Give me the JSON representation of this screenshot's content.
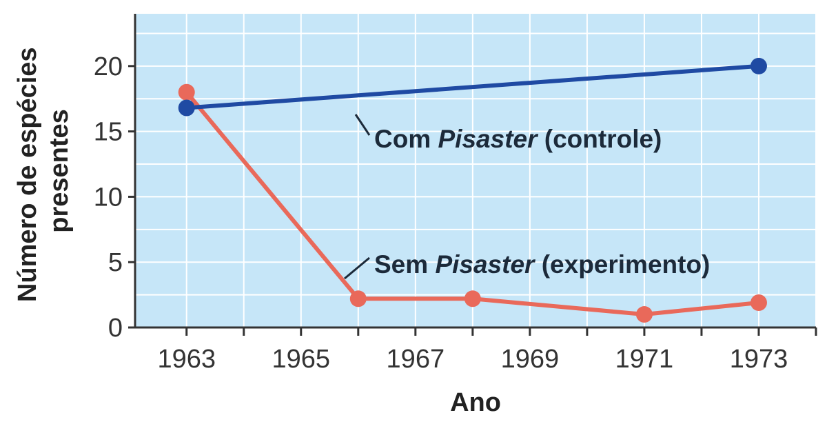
{
  "chart_data": {
    "type": "line",
    "xlabel": "Ano",
    "ylabel_lines": [
      "Número de espécies",
      "presentes"
    ],
    "x_ticks": [
      "1963",
      "1965",
      "1967",
      "1969",
      "1971",
      "1973"
    ],
    "y_ticks": [
      "0",
      "5",
      "10",
      "15",
      "20"
    ],
    "xlim": [
      1962.1,
      1974.0
    ],
    "ylim": [
      0,
      24
    ],
    "grid": true,
    "background_color": "#c6e6f8",
    "series": [
      {
        "key": "control",
        "color": "#1f4aa3",
        "points": [
          {
            "x": 1963,
            "y": 16.8
          },
          {
            "x": 1973,
            "y": 20
          }
        ]
      },
      {
        "key": "experiment",
        "color": "#e9695a",
        "points": [
          {
            "x": 1963,
            "y": 18
          },
          {
            "x": 1966,
            "y": 2.2
          },
          {
            "x": 1968,
            "y": 2.2
          },
          {
            "x": 1971,
            "y": 1
          },
          {
            "x": 1973,
            "y": 1.9
          }
        ]
      }
    ],
    "annotations": [
      {
        "series": "control",
        "text_before": "Com ",
        "text_italic": "Pisaster",
        "text_after": " (controle)"
      },
      {
        "series": "experiment",
        "text_before": "Sem ",
        "text_italic": "Pisaster",
        "text_after": " (experimento)"
      }
    ]
  }
}
